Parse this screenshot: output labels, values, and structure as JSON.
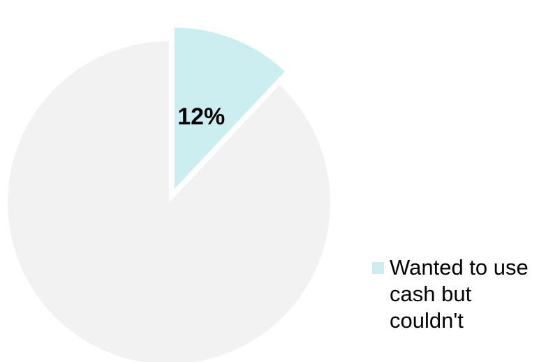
{
  "chart_data": {
    "type": "pie",
    "slices": [
      {
        "name": "Wanted to use cash but couldn't",
        "value": 12,
        "label": "12%",
        "color": "#cdeef0",
        "exploded": true
      },
      {
        "name": "",
        "value": 88,
        "label": "",
        "color": "#f2f2f2",
        "exploded": false
      }
    ],
    "start_angle_deg": 0,
    "direction": "clockwise",
    "legend": {
      "position": "bottom-right",
      "entries": [
        {
          "label": "Wanted to use cash but couldn't",
          "color": "#cdeef0"
        }
      ]
    }
  }
}
